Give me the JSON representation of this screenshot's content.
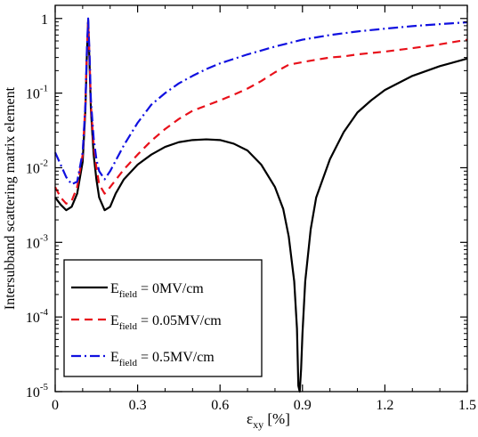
{
  "chart_data": {
    "type": "line",
    "title": "",
    "xlabel_main": "ε",
    "xlabel_sub": "xy",
    "xlabel_unit": " [%]",
    "ylabel": "Intersubband scattering matrix element",
    "xlim": [
      0,
      1.5
    ],
    "ylim": [
      1e-05,
      1.5
    ],
    "yscale": "log",
    "grid": false,
    "legend_position": "bottom-left",
    "x_ticks": [
      {
        "value": 0,
        "label": "0"
      },
      {
        "value": 0.3,
        "label": "0.3"
      },
      {
        "value": 0.6,
        "label": "0.6"
      },
      {
        "value": 0.9,
        "label": "0.9"
      },
      {
        "value": 1.2,
        "label": "1.2"
      },
      {
        "value": 1.5,
        "label": "1.5"
      }
    ],
    "y_ticks": [
      {
        "value": 1,
        "base": "1",
        "exp": ""
      },
      {
        "value": 0.1,
        "base": "10",
        "exp": "-1"
      },
      {
        "value": 0.01,
        "base": "10",
        "exp": "-2"
      },
      {
        "value": 0.001,
        "base": "10",
        "exp": "-3"
      },
      {
        "value": 0.0001,
        "base": "10",
        "exp": "-4"
      },
      {
        "value": 1e-05,
        "base": "10",
        "exp": "-5"
      }
    ],
    "series": [
      {
        "name_main": "E",
        "name_sub": "field",
        "name_tail": " = 0MV/cm",
        "color": "#000000",
        "dash": "",
        "x": [
          0,
          0.02,
          0.04,
          0.06,
          0.08,
          0.1,
          0.11,
          0.115,
          0.12,
          0.125,
          0.13,
          0.14,
          0.15,
          0.16,
          0.18,
          0.2,
          0.22,
          0.25,
          0.3,
          0.35,
          0.4,
          0.45,
          0.5,
          0.55,
          0.6,
          0.65,
          0.7,
          0.75,
          0.8,
          0.83,
          0.85,
          0.87,
          0.88,
          0.885,
          0.89,
          0.895,
          0.9,
          0.91,
          0.93,
          0.95,
          1.0,
          1.05,
          1.1,
          1.15,
          1.2,
          1.3,
          1.4,
          1.5
        ],
        "y": [
          0.004,
          0.0032,
          0.0027,
          0.003,
          0.0045,
          0.012,
          0.06,
          0.3,
          0.95,
          0.25,
          0.06,
          0.015,
          0.007,
          0.004,
          0.0027,
          0.003,
          0.0045,
          0.007,
          0.011,
          0.015,
          0.019,
          0.022,
          0.0235,
          0.024,
          0.0235,
          0.021,
          0.017,
          0.011,
          0.0055,
          0.0028,
          0.0012,
          0.0003,
          7e-05,
          1.2e-05,
          1e-05,
          2e-05,
          6e-05,
          0.0003,
          0.0015,
          0.004,
          0.013,
          0.03,
          0.055,
          0.08,
          0.11,
          0.17,
          0.23,
          0.29
        ]
      },
      {
        "name_main": "E",
        "name_sub": "field",
        "name_tail": " = 0.05MV/cm",
        "color": "#e8101a",
        "dash": "9,6",
        "x": [
          0,
          0.02,
          0.04,
          0.06,
          0.08,
          0.1,
          0.11,
          0.115,
          0.12,
          0.125,
          0.13,
          0.14,
          0.15,
          0.16,
          0.18,
          0.2,
          0.25,
          0.3,
          0.35,
          0.4,
          0.45,
          0.5,
          0.55,
          0.6,
          0.65,
          0.7,
          0.75,
          0.8,
          0.85,
          0.9,
          0.95,
          1.0,
          1.05,
          1.1,
          1.2,
          1.3,
          1.4,
          1.5
        ],
        "y": [
          0.0055,
          0.004,
          0.0033,
          0.0036,
          0.0055,
          0.015,
          0.07,
          0.33,
          0.9,
          0.3,
          0.07,
          0.02,
          0.01,
          0.006,
          0.0045,
          0.0055,
          0.0095,
          0.015,
          0.023,
          0.033,
          0.045,
          0.058,
          0.068,
          0.08,
          0.095,
          0.115,
          0.145,
          0.19,
          0.24,
          0.26,
          0.28,
          0.3,
          0.31,
          0.33,
          0.36,
          0.4,
          0.45,
          0.52
        ]
      },
      {
        "name_main": "E",
        "name_sub": "field",
        "name_tail": " = 0.5MV/cm",
        "color": "#1010e0",
        "dash": "11,4,2,4",
        "x": [
          0,
          0.02,
          0.04,
          0.06,
          0.08,
          0.1,
          0.11,
          0.115,
          0.12,
          0.125,
          0.13,
          0.14,
          0.15,
          0.16,
          0.18,
          0.2,
          0.25,
          0.3,
          0.35,
          0.4,
          0.45,
          0.5,
          0.55,
          0.6,
          0.7,
          0.8,
          0.9,
          1.0,
          1.1,
          1.2,
          1.3,
          1.4,
          1.5
        ],
        "y": [
          0.016,
          0.011,
          0.0075,
          0.006,
          0.0065,
          0.016,
          0.07,
          0.35,
          1.0,
          0.35,
          0.08,
          0.025,
          0.013,
          0.009,
          0.007,
          0.009,
          0.02,
          0.04,
          0.07,
          0.1,
          0.135,
          0.17,
          0.21,
          0.25,
          0.33,
          0.42,
          0.52,
          0.6,
          0.67,
          0.73,
          0.79,
          0.84,
          0.89
        ]
      }
    ]
  }
}
